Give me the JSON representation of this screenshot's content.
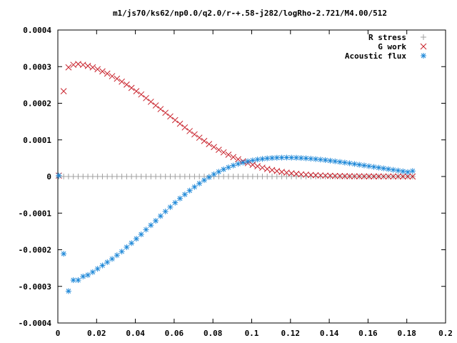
{
  "chart_data": {
    "type": "scatter",
    "title": "m1/js70/ks62/np0.0/q2.0/r-+.58-j282/logRho-2.721/M4.00/512",
    "xlabel": "",
    "ylabel": "",
    "xlim": [
      0,
      0.2
    ],
    "ylim": [
      -0.0004,
      0.0004
    ],
    "grid": false,
    "legend_position": "top-right",
    "x_ticks": [
      "0",
      "0.02",
      "0.04",
      "0.06",
      "0.08",
      "0.1",
      "0.12",
      "0.14",
      "0.16",
      "0.18",
      "0.2"
    ],
    "y_ticks": [
      "0.0004",
      "0.0003",
      "0.0002",
      "0.0001",
      "0",
      "-0.0001",
      "-0.0002",
      "-0.0003",
      "-0.0004"
    ],
    "series": [
      {
        "name": "R stress",
        "marker": "plus",
        "color": "#a0a0a0",
        "x": [
          0.0005,
          0.003,
          0.0055,
          0.008,
          0.0105,
          0.013,
          0.0155,
          0.018,
          0.0205,
          0.023,
          0.0255,
          0.028,
          0.0305,
          0.033,
          0.0355,
          0.038,
          0.0405,
          0.043,
          0.0455,
          0.048,
          0.0505,
          0.053,
          0.0555,
          0.058,
          0.0605,
          0.063,
          0.0655,
          0.068,
          0.0705,
          0.073,
          0.0755,
          0.078,
          0.0805,
          0.083,
          0.0855,
          0.088,
          0.0905,
          0.093,
          0.0955,
          0.098,
          0.1005,
          0.103,
          0.1055,
          0.108,
          0.1105,
          0.113,
          0.1155,
          0.118,
          0.1205,
          0.123,
          0.1255,
          0.128,
          0.1305,
          0.133,
          0.1355,
          0.138,
          0.1405,
          0.143,
          0.1455,
          0.148,
          0.1505,
          0.153,
          0.1555,
          0.158,
          0.1605,
          0.163,
          0.1655,
          0.168,
          0.1705,
          0.173,
          0.1755,
          0.178,
          0.1805,
          0.183
        ],
        "y": [
          0,
          0,
          0,
          0,
          0,
          0,
          0,
          0,
          0,
          0,
          0,
          0,
          0,
          0,
          0,
          0,
          0,
          0,
          0,
          0,
          0,
          0,
          0,
          0,
          0,
          0,
          0,
          0,
          0,
          0,
          0,
          0,
          0,
          0,
          0,
          0,
          0,
          0,
          0,
          0,
          0,
          0,
          0,
          0,
          0,
          0,
          0,
          0,
          0,
          0,
          0,
          0,
          0,
          0,
          0,
          0,
          0,
          0,
          0,
          0,
          0,
          0,
          0,
          0,
          0,
          0,
          0,
          0,
          0,
          0,
          0,
          0,
          0,
          0
        ]
      },
      {
        "name": "G work",
        "marker": "cross",
        "color": "#c8202a",
        "x": [
          0.0005,
          0.003,
          0.0055,
          0.008,
          0.0105,
          0.013,
          0.0155,
          0.018,
          0.0205,
          0.023,
          0.0255,
          0.028,
          0.0305,
          0.033,
          0.0355,
          0.038,
          0.0405,
          0.043,
          0.0455,
          0.048,
          0.0505,
          0.053,
          0.0555,
          0.058,
          0.0605,
          0.063,
          0.0655,
          0.068,
          0.0705,
          0.073,
          0.0755,
          0.078,
          0.0805,
          0.083,
          0.0855,
          0.088,
          0.0905,
          0.093,
          0.0955,
          0.098,
          0.1005,
          0.103,
          0.1055,
          0.108,
          0.1105,
          0.113,
          0.1155,
          0.118,
          0.1205,
          0.123,
          0.1255,
          0.128,
          0.1305,
          0.133,
          0.1355,
          0.138,
          0.1405,
          0.143,
          0.1455,
          0.148,
          0.1505,
          0.153,
          0.1555,
          0.158,
          0.1605,
          0.163,
          0.1655,
          0.168,
          0.1705,
          0.173,
          0.1755,
          0.178,
          0.1805,
          0.183
        ],
        "y": [
          2.5e-06,
          0.000233,
          0.000298,
          0.000305,
          0.000307,
          0.000305,
          0.000302,
          0.000298,
          0.000293,
          0.000287,
          0.000281,
          0.000274,
          0.000267,
          0.000259,
          0.000251,
          0.000242,
          0.000233,
          0.000224,
          0.000214,
          0.000204,
          0.000194,
          0.000184,
          0.000174,
          0.000164,
          0.000154,
          0.000144,
          0.000134,
          0.000124,
          0.000115,
          0.000106,
          9.7e-05,
          8.85e-05,
          8.05e-05,
          7.3e-05,
          6.6e-05,
          5.95e-05,
          5.3e-05,
          4.7e-05,
          4.15e-05,
          3.65e-05,
          3.2e-05,
          2.8e-05,
          2.4e-05,
          2.05e-05,
          1.75e-05,
          1.48e-05,
          1.25e-05,
          1.05e-05,
          8.8e-06,
          7.3e-06,
          6e-06,
          5e-06,
          4.1e-06,
          3.4e-06,
          2.8e-06,
          2.3e-06,
          1.9e-06,
          1.5e-06,
          1.2e-06,
          1e-06,
          8e-07,
          6e-07,
          5e-07,
          4e-07,
          3e-07,
          2e-07,
          2e-07,
          1e-07,
          1e-07,
          1e-07,
          1e-07,
          0.0,
          0.0,
          0.0
        ]
      },
      {
        "name": "Acoustic flux",
        "marker": "star",
        "color": "#1e88d8",
        "x": [
          0.0005,
          0.003,
          0.0055,
          0.008,
          0.0105,
          0.013,
          0.0155,
          0.018,
          0.0205,
          0.023,
          0.0255,
          0.028,
          0.0305,
          0.033,
          0.0355,
          0.038,
          0.0405,
          0.043,
          0.0455,
          0.048,
          0.0505,
          0.053,
          0.0555,
          0.058,
          0.0605,
          0.063,
          0.0655,
          0.068,
          0.0705,
          0.073,
          0.0755,
          0.078,
          0.0805,
          0.083,
          0.0855,
          0.088,
          0.0905,
          0.093,
          0.0955,
          0.098,
          0.1005,
          0.103,
          0.1055,
          0.108,
          0.1105,
          0.113,
          0.1155,
          0.118,
          0.1205,
          0.123,
          0.1255,
          0.128,
          0.1305,
          0.133,
          0.1355,
          0.138,
          0.1405,
          0.143,
          0.1455,
          0.148,
          0.1505,
          0.153,
          0.1555,
          0.158,
          0.1605,
          0.163,
          0.1655,
          0.168,
          0.1705,
          0.173,
          0.1755,
          0.178,
          0.1805,
          0.183
        ],
        "y": [
          2.5e-06,
          -0.000211,
          -0.000313,
          -0.000283,
          -0.000283,
          -0.000273,
          -0.000269,
          -0.000261,
          -0.000252,
          -0.000243,
          -0.000234,
          -0.000225,
          -0.000215,
          -0.000205,
          -0.000193,
          -0.000182,
          -0.00017,
          -0.000158,
          -0.000145,
          -0.000133,
          -0.000121,
          -0.000108,
          -9.55e-05,
          -8.35e-05,
          -7.15e-05,
          -6e-05,
          -4.9e-05,
          -3.85e-05,
          -2.85e-05,
          -1.9e-05,
          -1e-05,
          -2e-06,
          6e-06,
          1.3e-05,
          1.95e-05,
          2.5e-05,
          3e-05,
          3.45e-05,
          3.8e-05,
          4.15e-05,
          4.4e-05,
          4.65e-05,
          4.8e-05,
          4.95e-05,
          5.05e-05,
          5.12e-05,
          5.15e-05,
          5.17e-05,
          5.15e-05,
          5.12e-05,
          5.05e-05,
          4.97e-05,
          4.87e-05,
          4.75e-05,
          4.62e-05,
          4.48e-05,
          4.32e-05,
          4.15e-05,
          3.98e-05,
          3.8e-05,
          3.62e-05,
          3.42e-05,
          3.22e-05,
          3.02e-05,
          2.82e-05,
          2.62e-05,
          2.42e-05,
          2.22e-05,
          2.02e-05,
          1.82e-05,
          1.62e-05,
          1.42e-05,
          1.22e-05,
          1.5e-05
        ]
      }
    ]
  }
}
